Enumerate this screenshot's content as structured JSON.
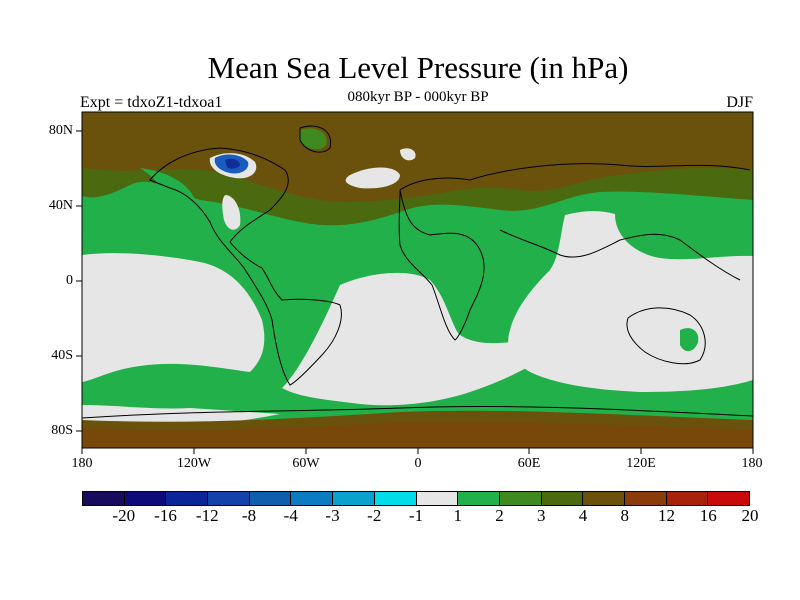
{
  "title": "Mean Sea Level Pressure (in hPa)",
  "subtitle": "080kyr BP - 000kyr BP",
  "experiment": "Expt = tdxoZ1-tdxoa1",
  "season": "DJF",
  "lat_labels": [
    "80N",
    "40N",
    "0",
    "40S",
    "80S"
  ],
  "lon_labels": [
    "180",
    "120W",
    "60W",
    "0",
    "60E",
    "120E",
    "180"
  ],
  "colorbar": {
    "labels": [
      "-20",
      "-16",
      "-12",
      "-8",
      "-4",
      "-3",
      "-2",
      "-1",
      "1",
      "2",
      "3",
      "4",
      "8",
      "12",
      "16",
      "20"
    ],
    "colors": [
      "#170b5c",
      "#0d0b7a",
      "#0c2596",
      "#1342a8",
      "#0f5eae",
      "#0b7cc2",
      "#0aa1cf",
      "#00dde8",
      "#e6e6e6",
      "#22b04a",
      "#3e8a1f",
      "#4b6a0f",
      "#6b520c",
      "#8a3b0a",
      "#a8210a",
      "#c80a0a"
    ]
  },
  "map_colors": {
    "ocean_light": "#e6e6e6",
    "green": "#22b04a",
    "dark_green": "#3e8a1f",
    "olive": "#4b6a0f",
    "brown": "#6b520c",
    "blue": "#1a5cc0"
  }
}
